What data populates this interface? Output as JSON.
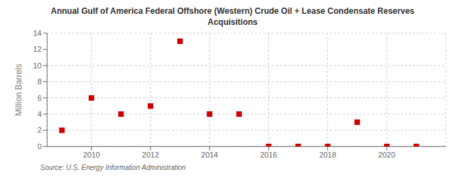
{
  "chart_data": {
    "type": "scatter",
    "title": "Annual Gulf of America Federal Offshore (Western) Crude Oil + Lease Condensate Reserves\nAcquisitions",
    "ylabel": "Million Barrels",
    "source": "Source: U.S. Energy Information Administration",
    "x": [
      2009,
      2010,
      2011,
      2012,
      2013,
      2014,
      2015,
      2016,
      2017,
      2018,
      2019,
      2020,
      2021
    ],
    "values": [
      2,
      6,
      4,
      5,
      13,
      4,
      4,
      0,
      0,
      0,
      3,
      0,
      0
    ],
    "color": "#cc0000",
    "marker": "square",
    "xlim": [
      2008.5,
      2022.0
    ],
    "ylim": [
      0,
      14
    ],
    "xticks": [
      2010,
      2012,
      2014,
      2016,
      2018,
      2020
    ],
    "yticks": [
      0,
      2,
      4,
      6,
      8,
      10,
      12,
      14
    ],
    "grid": true
  }
}
